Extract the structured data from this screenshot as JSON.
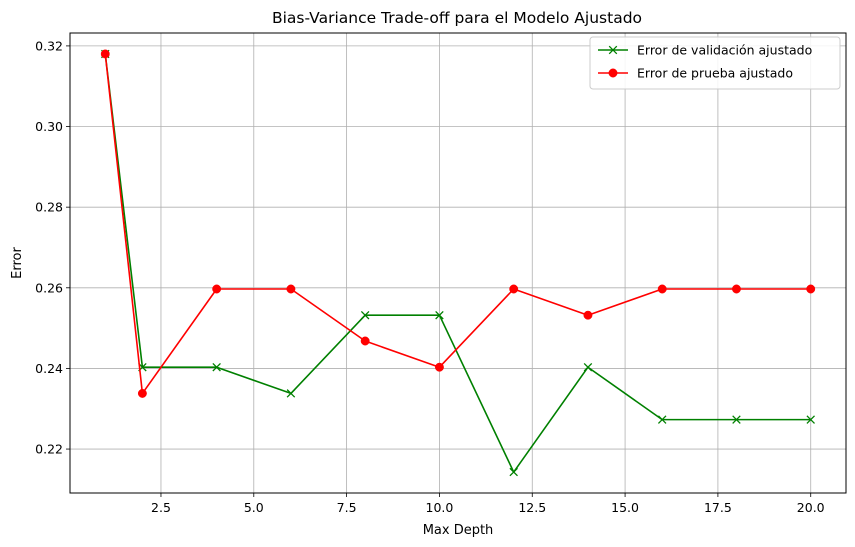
{
  "chart_data": {
    "type": "line",
    "title": "Bias-Variance Trade-off para el Modelo Ajustado",
    "xlabel": "Max Depth",
    "ylabel": "Error",
    "xlim": [
      0.05,
      20.95
    ],
    "ylim": [
      0.2091,
      0.3232
    ],
    "xticks": [
      2.5,
      5.0,
      7.5,
      10.0,
      12.5,
      15.0,
      17.5,
      20.0
    ],
    "xtick_labels": [
      "2.5",
      "5.0",
      "7.5",
      "10.0",
      "12.5",
      "15.0",
      "17.5",
      "20.0"
    ],
    "yticks": [
      0.22,
      0.24,
      0.26,
      0.28,
      0.3,
      0.32
    ],
    "ytick_labels": [
      "0.22",
      "0.24",
      "0.26",
      "0.28",
      "0.30",
      "0.32"
    ],
    "grid": true,
    "legend_position": "top-right",
    "x": [
      1,
      2,
      4,
      6,
      8,
      10,
      12,
      14,
      16,
      18,
      20
    ],
    "series": [
      {
        "name": "Error de validación ajustado",
        "color": "#008000",
        "marker": "x",
        "values": [
          0.318,
          0.2403,
          0.2403,
          0.2338,
          0.2532,
          0.2532,
          0.2143,
          0.2403,
          0.2273,
          0.2273,
          0.2273
        ]
      },
      {
        "name": "Error de prueba ajustado",
        "color": "#ff0000",
        "marker": "o",
        "values": [
          0.318,
          0.2338,
          0.2597,
          0.2597,
          0.2468,
          0.2403,
          0.2597,
          0.2532,
          0.2597,
          0.2597,
          0.2597
        ]
      }
    ]
  }
}
